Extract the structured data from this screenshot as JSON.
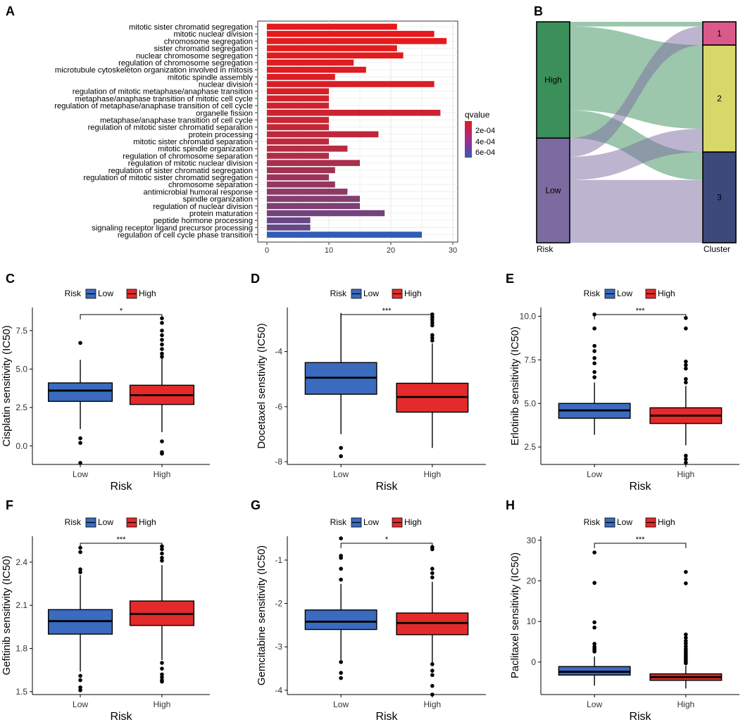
{
  "chart_data": [
    {
      "panel": "A",
      "type": "bar",
      "orientation": "horizontal",
      "categories": [
        "mitotic sister chromatid segregation",
        "mitotic nuclear division",
        "chromosome segregation",
        "sister chromatid segregation",
        "nuclear chromosome segregation",
        "regulation of chromosome segregation",
        "microtubule cytoskeleton organization involved in mitosis",
        "mitotic spindle assembly",
        "nuclear division",
        "regulation of mitotic metaphase/anaphase transition",
        "metaphase/anaphase transition of mitotic cell cycle",
        "regulation of metaphase/anaphase transition of cell cycle",
        "organelle fission",
        "metaphase/anaphase transition of cell cycle",
        "regulation of mitotic sister chromatid separation",
        "protein processing",
        "mitotic sister chromatid separation",
        "mitotic spindle organization",
        "regulation of chromosome separation",
        "regulation of mitotic nuclear division",
        "regulation of sister chromatid segregation",
        "regulation of mitotic sister chromatid segregation",
        "chromosome separation",
        "antimicrobial humoral response",
        "spindle organization",
        "regulation of nuclear division",
        "protein maturation",
        "peptide hormone processing",
        "signaling receptor ligand precursor processing",
        "regulation of cell cycle phase transition"
      ],
      "values": [
        21,
        27,
        29,
        21,
        22,
        14,
        16,
        11,
        27,
        10,
        10,
        10,
        28,
        10,
        10,
        18,
        10,
        13,
        10,
        15,
        11,
        10,
        11,
        13,
        15,
        15,
        19,
        7,
        7,
        25
      ],
      "qvalue": [
        8e-05,
        8e-05,
        8e-05,
        8e-05,
        8e-05,
        9e-05,
        0.0001,
        0.00011,
        0.00012,
        0.00013,
        0.00014,
        0.00015,
        0.00016,
        0.00017,
        0.00018,
        0.0002,
        0.00021,
        0.00023,
        0.00025,
        0.00027,
        0.0003,
        0.00032,
        0.00034,
        0.00037,
        0.0004,
        0.00042,
        0.00045,
        0.00048,
        0.0005,
        0.00068
      ],
      "xticks": [
        0,
        10,
        20,
        30
      ],
      "xlim": [
        0,
        30
      ],
      "legend": {
        "title": "qvalue",
        "labels": [
          "2e-04",
          "4e-04",
          "6e-04"
        ],
        "colors": [
          "#e41a1c",
          "#b0287a",
          "#7a3aa0",
          "#3a5cb0"
        ]
      },
      "bar_color_top": "#e41a1c",
      "bar_color_bottom": "#2e5cb8"
    },
    {
      "panel": "B",
      "type": "alluvial",
      "left_axis": "Risk",
      "right_axis": "Cluster",
      "left_strata": [
        {
          "name": "High",
          "value": 50,
          "color": "#3a8f5a"
        },
        {
          "name": "Low",
          "value": 45,
          "color": "#7b6ba0"
        }
      ],
      "right_strata": [
        {
          "name": "1",
          "value": 10,
          "color": "#d95a8a"
        },
        {
          "name": "2",
          "value": 46,
          "color": "#d8d86a"
        },
        {
          "name": "3",
          "value": 39,
          "color": "#3b4a7a"
        }
      ],
      "flows": [
        {
          "from": "High",
          "to": "1",
          "value": 2
        },
        {
          "from": "High",
          "to": "2",
          "value": 36
        },
        {
          "from": "High",
          "to": "3",
          "value": 12
        },
        {
          "from": "Low",
          "to": "1",
          "value": 8
        },
        {
          "from": "Low",
          "to": "2",
          "value": 10
        },
        {
          "from": "Low",
          "to": "3",
          "value": 27
        }
      ]
    },
    {
      "panel": "C",
      "type": "box",
      "ylabel": "Cisplatin sensitivity (IC50)",
      "xlabel": "Risk",
      "legend_title": "Risk",
      "legend_items": [
        "Low",
        "High"
      ],
      "significance": "*",
      "ylim": [
        -1.2,
        9.0
      ],
      "yticks": [
        "0.0",
        "2.5",
        "5.0",
        "7.5"
      ],
      "groups": [
        {
          "name": "Low",
          "color": "#3a6bbf",
          "q1": 2.9,
          "median": 3.6,
          "q3": 4.1,
          "whisker_low": 1.1,
          "whisker_high": 5.6,
          "outliers": [
            6.7,
            0.5,
            0.2,
            -1.1
          ]
        },
        {
          "name": "High",
          "color": "#e42a2a",
          "q1": 2.7,
          "median": 3.3,
          "q3": 3.95,
          "whisker_low": 0.9,
          "whisker_high": 5.7,
          "outliers": [
            8.3,
            8.0,
            7.5,
            7.2,
            6.9,
            6.6,
            6.3,
            6.0,
            5.8,
            0.3,
            -0.4,
            -0.5
          ]
        }
      ]
    },
    {
      "panel": "D",
      "type": "box",
      "ylabel": "Docetaxel senstivity (IC50)",
      "xlabel": "Risk",
      "legend_title": "Risk",
      "legend_items": [
        "Low",
        "High"
      ],
      "significance": "***",
      "ylim": [
        -8.1,
        -2.4
      ],
      "yticks": [
        "-4",
        "-6",
        "-8"
      ],
      "groups": [
        {
          "name": "Low",
          "color": "#3a6bbf",
          "q1": -5.55,
          "median": -4.95,
          "q3": -4.4,
          "whisker_low": -7.0,
          "whisker_high": -2.6,
          "outliers": [
            -7.5,
            -7.8
          ]
        },
        {
          "name": "High",
          "color": "#e42a2a",
          "q1": -6.2,
          "median": -5.65,
          "q3": -5.15,
          "whisker_low": -7.5,
          "whisker_high": -3.7,
          "outliers": [
            -2.65,
            -2.75,
            -2.85,
            -2.95,
            -3.05,
            -3.4,
            -3.5,
            -3.6
          ]
        }
      ]
    },
    {
      "panel": "E",
      "type": "box",
      "ylabel": "Erlotinib sensitivity (IC50)",
      "xlabel": "Risk",
      "legend_title": "Risk",
      "legend_items": [
        "Low",
        "High"
      ],
      "significance": "***",
      "ylim": [
        1.5,
        10.5
      ],
      "yticks": [
        "2.5",
        "5.0",
        "7.5",
        "10.0"
      ],
      "groups": [
        {
          "name": "Low",
          "color": "#3a6bbf",
          "q1": 4.15,
          "median": 4.6,
          "q3": 5.0,
          "whisker_low": 3.2,
          "whisker_high": 6.2,
          "outliers": [
            10.1,
            9.3,
            8.3,
            8.0,
            7.6,
            7.3,
            6.8,
            6.5
          ]
        },
        {
          "name": "High",
          "color": "#e42a2a",
          "q1": 3.85,
          "median": 4.3,
          "q3": 4.75,
          "whisker_low": 2.6,
          "whisker_high": 6.0,
          "outliers": [
            9.9,
            9.3,
            7.4,
            7.2,
            7.0,
            6.4,
            6.2,
            2.0,
            1.8,
            1.6
          ]
        }
      ]
    },
    {
      "panel": "F",
      "type": "box",
      "ylabel": "Gefitinib sensitivity (IC50)",
      "xlabel": "Risk",
      "legend_title": "Risk",
      "legend_items": [
        "Low",
        "High"
      ],
      "significance": "***",
      "ylim": [
        1.48,
        2.58
      ],
      "yticks": [
        "1.5",
        "1.8",
        "2.1",
        "2.4"
      ],
      "groups": [
        {
          "name": "Low",
          "color": "#3a6bbf",
          "q1": 1.9,
          "median": 1.99,
          "q3": 2.07,
          "whisker_low": 1.64,
          "whisker_high": 2.31,
          "outliers": [
            2.5,
            2.47,
            2.35,
            2.33,
            1.61,
            1.58,
            1.53,
            1.51
          ]
        },
        {
          "name": "High",
          "color": "#e42a2a",
          "q1": 1.96,
          "median": 2.04,
          "q3": 2.13,
          "whisker_low": 1.72,
          "whisker_high": 2.38,
          "outliers": [
            2.51,
            2.49,
            2.46,
            2.43,
            2.41,
            1.7,
            1.66,
            1.62,
            1.6,
            1.58,
            1.57
          ]
        }
      ]
    },
    {
      "panel": "G",
      "type": "box",
      "ylabel": "Gemcitabine sensitivity (IC50)",
      "xlabel": "Risk",
      "legend_title": "Risk",
      "legend_items": [
        "Low",
        "High"
      ],
      "significance": "*",
      "ylim": [
        -4.1,
        -0.45
      ],
      "yticks": [
        "-1",
        "-2",
        "-3",
        "-4"
      ],
      "groups": [
        {
          "name": "Low",
          "color": "#3a6bbf",
          "q1": -2.6,
          "median": -2.42,
          "q3": -2.15,
          "whisker_low": -3.3,
          "whisker_high": -1.55,
          "outliers": [
            -0.5,
            -0.9,
            -0.95,
            -1.2,
            -1.45,
            -3.35,
            -3.6,
            -3.72
          ]
        },
        {
          "name": "High",
          "color": "#e42a2a",
          "q1": -2.72,
          "median": -2.45,
          "q3": -2.22,
          "whisker_low": -3.4,
          "whisker_high": -1.5,
          "outliers": [
            -0.7,
            -0.75,
            -1.2,
            -1.3,
            -1.4,
            -3.4,
            -3.55,
            -3.65,
            -3.9,
            -4.1
          ]
        }
      ]
    },
    {
      "panel": "H",
      "type": "box",
      "ylabel": "Paclitaxel sensitivity (IC50)",
      "xlabel": "Risk",
      "legend_title": "Risk",
      "legend_items": [
        "Low",
        "High"
      ],
      "significance": "***",
      "ylim": [
        -8.0,
        31.0
      ],
      "yticks": [
        "0",
        "10",
        "20",
        "30"
      ],
      "groups": [
        {
          "name": "Low",
          "color": "#3a6bbf",
          "q1": -3.2,
          "median": -2.4,
          "q3": -1.1,
          "whisker_low": -5.8,
          "whisker_high": 1.4,
          "outliers": [
            27.0,
            19.5,
            9.8,
            8.5,
            4.5,
            3.8,
            3.4,
            3.0,
            2.6
          ]
        },
        {
          "name": "High",
          "color": "#e42a2a",
          "q1": -4.5,
          "median": -3.7,
          "q3": -2.9,
          "whisker_low": -6.5,
          "whisker_high": -0.9,
          "outliers": [
            22.2,
            19.4,
            6.8,
            6.0,
            5.2,
            4.6,
            3.9,
            3.3,
            2.8,
            2.3,
            1.9,
            1.5,
            1.1,
            0.7,
            0.4,
            0.1,
            -0.3
          ]
        }
      ]
    }
  ]
}
